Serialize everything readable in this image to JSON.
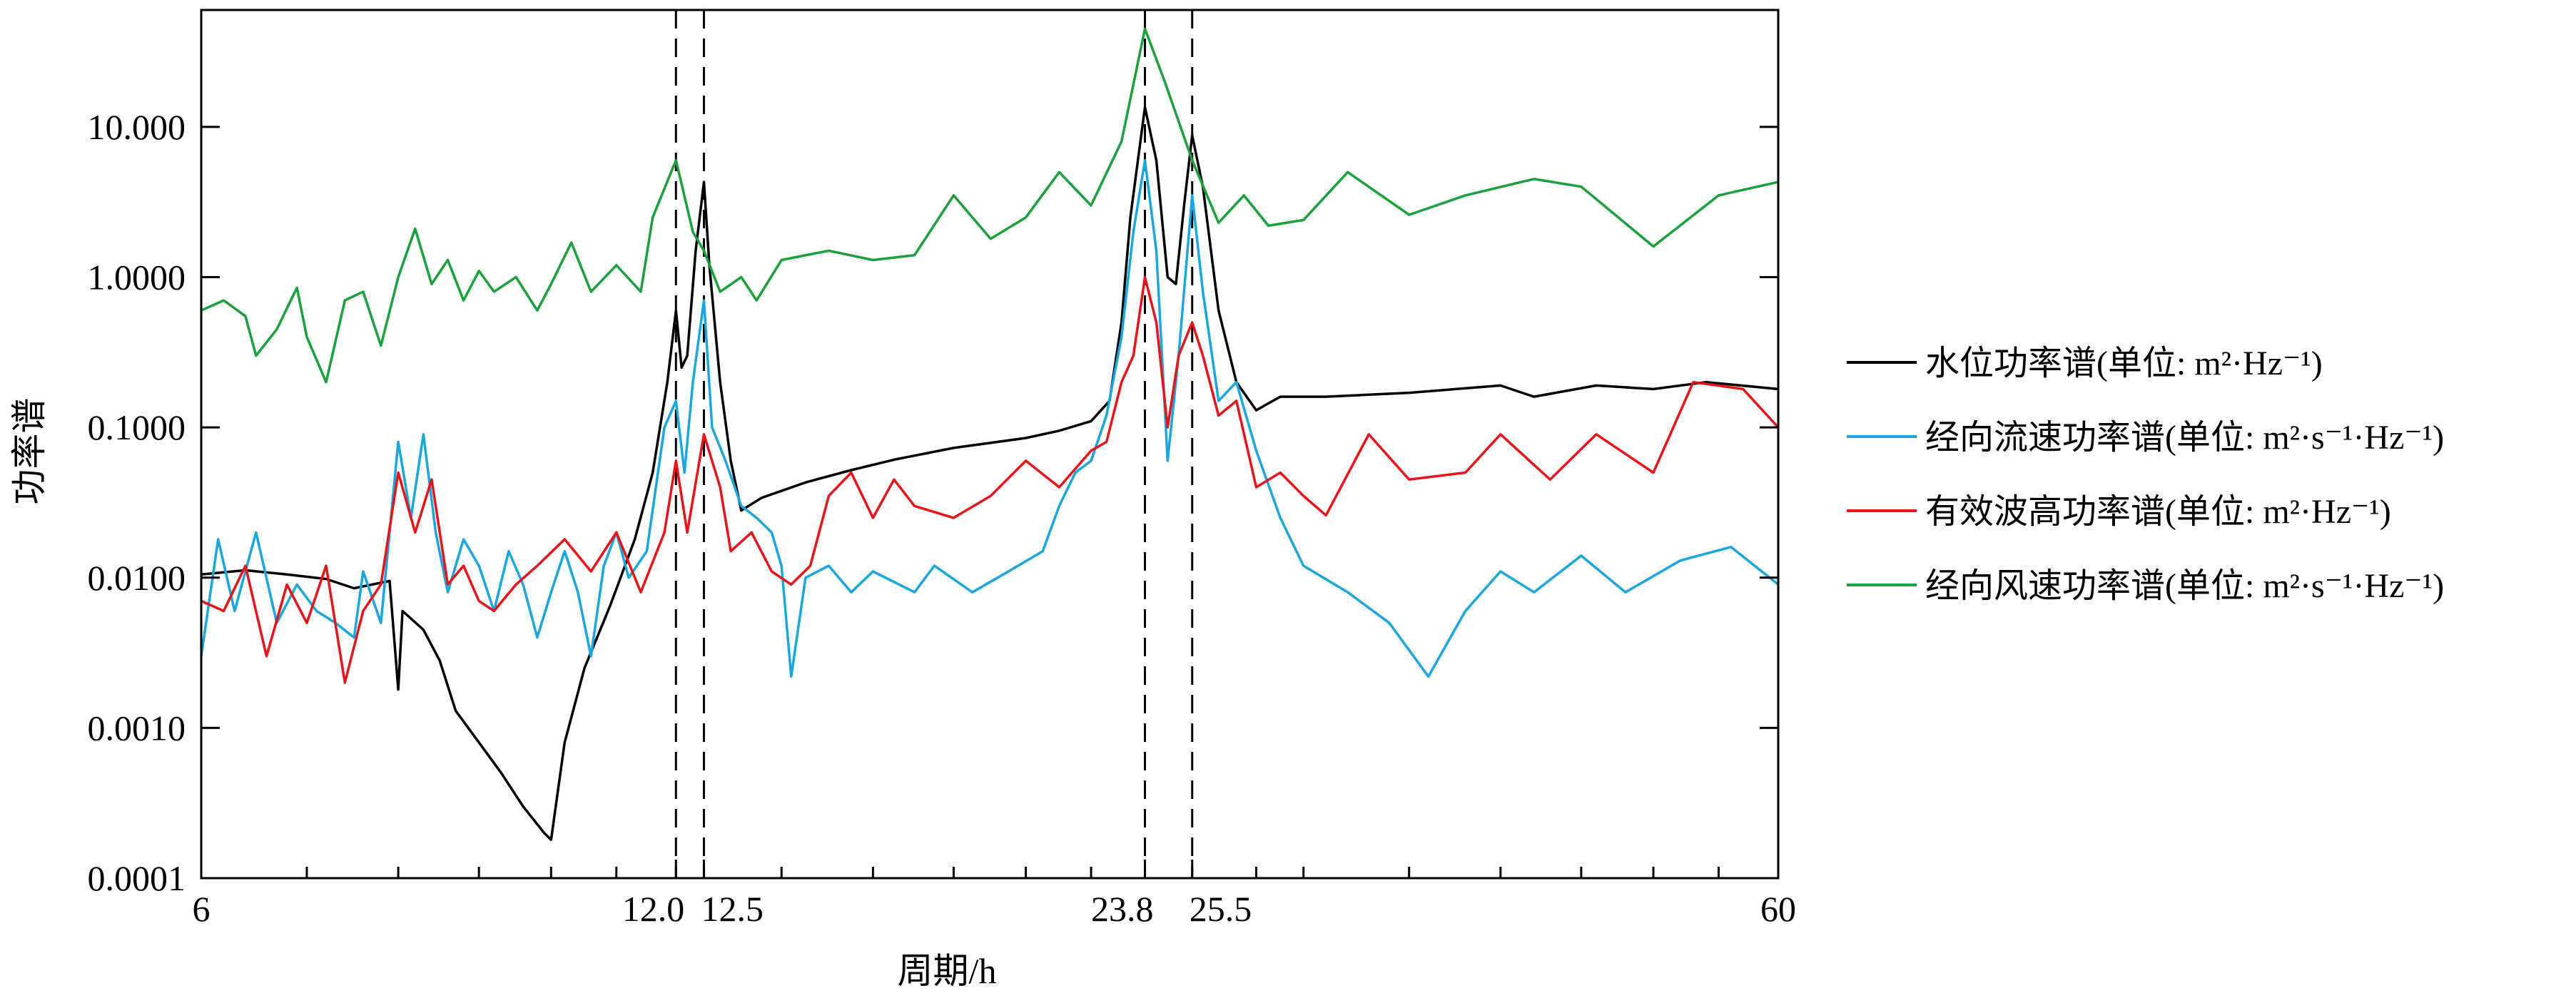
{
  "chart_data": {
    "type": "line",
    "xlabel": "周期/h",
    "ylabel": "功率谱",
    "x_scale": "log",
    "y_scale": "log",
    "xlim": [
      6,
      60
    ],
    "ylim": [
      0.0001,
      60
    ],
    "x_ticks": [
      {
        "value": 6,
        "label": "6"
      },
      {
        "value": 12.0,
        "label": "12.0"
      },
      {
        "value": 12.5,
        "label": "12.5"
      },
      {
        "value": 23.8,
        "label": "23.8"
      },
      {
        "value": 25.5,
        "label": "25.5"
      },
      {
        "value": 60,
        "label": "60"
      }
    ],
    "y_ticks": [
      {
        "value": 0.0001,
        "label": "0.0001"
      },
      {
        "value": 0.001,
        "label": "0.0010"
      },
      {
        "value": 0.01,
        "label": "0.0100"
      },
      {
        "value": 0.1,
        "label": "0.1000"
      },
      {
        "value": 1,
        "label": "1.0000"
      },
      {
        "value": 10,
        "label": "10.000"
      }
    ],
    "reference_lines_x": [
      12.0,
      12.5,
      23.8,
      25.5
    ],
    "legend_position": "right",
    "grid": false,
    "series": [
      {
        "name": "水位功率谱(单位: m²·Hz⁻¹)",
        "color": "#000000",
        "points": [
          [
            6.0,
            0.0105
          ],
          [
            6.4,
            0.0112
          ],
          [
            6.8,
            0.0105
          ],
          [
            7.2,
            0.0098
          ],
          [
            7.5,
            0.0085
          ],
          [
            7.9,
            0.0095
          ],
          [
            8.0,
            0.0018
          ],
          [
            8.05,
            0.006
          ],
          [
            8.3,
            0.0045
          ],
          [
            8.5,
            0.0028
          ],
          [
            8.7,
            0.0013
          ],
          [
            9.0,
            0.0008
          ],
          [
            9.3,
            0.0005
          ],
          [
            9.6,
            0.0003
          ],
          [
            9.9,
            0.0002
          ],
          [
            10.0,
            0.00018
          ],
          [
            10.2,
            0.0008
          ],
          [
            10.5,
            0.0025
          ],
          [
            10.9,
            0.0065
          ],
          [
            11.3,
            0.018
          ],
          [
            11.6,
            0.05
          ],
          [
            11.85,
            0.2
          ],
          [
            12.0,
            0.6
          ],
          [
            12.1,
            0.25
          ],
          [
            12.2,
            0.3
          ],
          [
            12.35,
            1.5
          ],
          [
            12.5,
            4.3
          ],
          [
            12.6,
            1.2
          ],
          [
            12.8,
            0.2
          ],
          [
            13.0,
            0.06
          ],
          [
            13.2,
            0.028
          ],
          [
            13.6,
            0.034
          ],
          [
            14.5,
            0.043
          ],
          [
            15.5,
            0.052
          ],
          [
            16.5,
            0.061
          ],
          [
            18.0,
            0.073
          ],
          [
            20.0,
            0.085
          ],
          [
            21.0,
            0.095
          ],
          [
            22.0,
            0.11
          ],
          [
            22.6,
            0.15
          ],
          [
            23.0,
            0.5
          ],
          [
            23.3,
            2.5
          ],
          [
            23.8,
            13.5
          ],
          [
            24.2,
            6.0
          ],
          [
            24.6,
            1.0
          ],
          [
            24.9,
            0.9
          ],
          [
            25.2,
            3.0
          ],
          [
            25.5,
            8.8
          ],
          [
            25.9,
            4.0
          ],
          [
            26.5,
            0.6
          ],
          [
            27.2,
            0.2
          ],
          [
            28.0,
            0.13
          ],
          [
            29.0,
            0.16
          ],
          [
            31.0,
            0.16
          ],
          [
            35.0,
            0.17
          ],
          [
            40.0,
            0.19
          ],
          [
            42.0,
            0.16
          ],
          [
            46.0,
            0.19
          ],
          [
            50.0,
            0.18
          ],
          [
            54.0,
            0.2
          ],
          [
            60.0,
            0.18
          ]
        ]
      },
      {
        "name": "经向流速功率谱(单位: m²·s⁻¹·Hz⁻¹)",
        "color": "#1aa7dd",
        "points": [
          [
            6.0,
            0.003
          ],
          [
            6.15,
            0.018
          ],
          [
            6.3,
            0.006
          ],
          [
            6.5,
            0.02
          ],
          [
            6.7,
            0.005
          ],
          [
            6.9,
            0.009
          ],
          [
            7.1,
            0.006
          ],
          [
            7.3,
            0.005
          ],
          [
            7.5,
            0.004
          ],
          [
            7.6,
            0.011
          ],
          [
            7.8,
            0.005
          ],
          [
            8.0,
            0.08
          ],
          [
            8.15,
            0.025
          ],
          [
            8.3,
            0.09
          ],
          [
            8.45,
            0.02
          ],
          [
            8.6,
            0.008
          ],
          [
            8.8,
            0.018
          ],
          [
            9.0,
            0.012
          ],
          [
            9.2,
            0.006
          ],
          [
            9.4,
            0.015
          ],
          [
            9.6,
            0.009
          ],
          [
            9.8,
            0.004
          ],
          [
            10.0,
            0.008
          ],
          [
            10.2,
            0.015
          ],
          [
            10.4,
            0.008
          ],
          [
            10.6,
            0.003
          ],
          [
            10.8,
            0.012
          ],
          [
            11.0,
            0.02
          ],
          [
            11.2,
            0.01
          ],
          [
            11.5,
            0.015
          ],
          [
            11.8,
            0.1
          ],
          [
            12.0,
            0.15
          ],
          [
            12.15,
            0.05
          ],
          [
            12.3,
            0.2
          ],
          [
            12.5,
            0.7
          ],
          [
            12.65,
            0.1
          ],
          [
            12.9,
            0.06
          ],
          [
            13.2,
            0.03
          ],
          [
            13.5,
            0.025
          ],
          [
            13.8,
            0.02
          ],
          [
            14.0,
            0.012
          ],
          [
            14.2,
            0.0022
          ],
          [
            14.5,
            0.01
          ],
          [
            15.0,
            0.012
          ],
          [
            15.5,
            0.008
          ],
          [
            16.0,
            0.011
          ],
          [
            17.0,
            0.008
          ],
          [
            17.5,
            0.012
          ],
          [
            18.5,
            0.008
          ],
          [
            19.5,
            0.011
          ],
          [
            20.5,
            0.015
          ],
          [
            21.0,
            0.03
          ],
          [
            21.5,
            0.05
          ],
          [
            22.0,
            0.06
          ],
          [
            22.5,
            0.12
          ],
          [
            23.0,
            0.4
          ],
          [
            23.4,
            2.0
          ],
          [
            23.8,
            6.0
          ],
          [
            24.2,
            1.5
          ],
          [
            24.6,
            0.06
          ],
          [
            25.0,
            0.3
          ],
          [
            25.5,
            3.5
          ],
          [
            25.9,
            0.8
          ],
          [
            26.5,
            0.15
          ],
          [
            27.2,
            0.2
          ],
          [
            28.0,
            0.07
          ],
          [
            29.0,
            0.025
          ],
          [
            30.0,
            0.012
          ],
          [
            32.0,
            0.008
          ],
          [
            34.0,
            0.005
          ],
          [
            36.0,
            0.0022
          ],
          [
            38.0,
            0.006
          ],
          [
            40.0,
            0.011
          ],
          [
            42.0,
            0.008
          ],
          [
            45.0,
            0.014
          ],
          [
            48.0,
            0.008
          ],
          [
            52.0,
            0.013
          ],
          [
            56.0,
            0.016
          ],
          [
            60.0,
            0.009
          ]
        ]
      },
      {
        "name": "有效波高功率谱(单位: m²·Hz⁻¹)",
        "color": "#e8141a",
        "points": [
          [
            6.0,
            0.007
          ],
          [
            6.2,
            0.006
          ],
          [
            6.4,
            0.012
          ],
          [
            6.6,
            0.003
          ],
          [
            6.8,
            0.009
          ],
          [
            7.0,
            0.005
          ],
          [
            7.2,
            0.012
          ],
          [
            7.4,
            0.002
          ],
          [
            7.6,
            0.006
          ],
          [
            7.8,
            0.009
          ],
          [
            8.0,
            0.05
          ],
          [
            8.2,
            0.02
          ],
          [
            8.4,
            0.045
          ],
          [
            8.6,
            0.009
          ],
          [
            8.8,
            0.012
          ],
          [
            9.0,
            0.007
          ],
          [
            9.2,
            0.006
          ],
          [
            9.5,
            0.009
          ],
          [
            9.8,
            0.012
          ],
          [
            10.2,
            0.018
          ],
          [
            10.6,
            0.011
          ],
          [
            11.0,
            0.02
          ],
          [
            11.4,
            0.008
          ],
          [
            11.8,
            0.02
          ],
          [
            12.0,
            0.06
          ],
          [
            12.2,
            0.02
          ],
          [
            12.5,
            0.09
          ],
          [
            12.8,
            0.04
          ],
          [
            13.0,
            0.015
          ],
          [
            13.4,
            0.02
          ],
          [
            13.8,
            0.011
          ],
          [
            14.2,
            0.009
          ],
          [
            14.6,
            0.012
          ],
          [
            15.0,
            0.035
          ],
          [
            15.5,
            0.05
          ],
          [
            16.0,
            0.025
          ],
          [
            16.5,
            0.045
          ],
          [
            17.0,
            0.03
          ],
          [
            18.0,
            0.025
          ],
          [
            19.0,
            0.035
          ],
          [
            20.0,
            0.06
          ],
          [
            21.0,
            0.04
          ],
          [
            22.0,
            0.07
          ],
          [
            22.5,
            0.08
          ],
          [
            23.0,
            0.2
          ],
          [
            23.4,
            0.3
          ],
          [
            23.8,
            1.0
          ],
          [
            24.2,
            0.5
          ],
          [
            24.6,
            0.1
          ],
          [
            25.0,
            0.3
          ],
          [
            25.5,
            0.5
          ],
          [
            25.9,
            0.3
          ],
          [
            26.5,
            0.12
          ],
          [
            27.2,
            0.15
          ],
          [
            28.0,
            0.04
          ],
          [
            29.0,
            0.05
          ],
          [
            30.0,
            0.035
          ],
          [
            31.0,
            0.026
          ],
          [
            33.0,
            0.09
          ],
          [
            35.0,
            0.045
          ],
          [
            38.0,
            0.05
          ],
          [
            40.0,
            0.09
          ],
          [
            43.0,
            0.045
          ],
          [
            46.0,
            0.09
          ],
          [
            50.0,
            0.05
          ],
          [
            53.0,
            0.2
          ],
          [
            57.0,
            0.18
          ],
          [
            60.0,
            0.1
          ]
        ]
      },
      {
        "name": "经向风速功率谱(单位: m²·s⁻¹·Hz⁻¹)",
        "color": "#1aa13c",
        "points": [
          [
            6.0,
            0.6
          ],
          [
            6.2,
            0.7
          ],
          [
            6.4,
            0.55
          ],
          [
            6.5,
            0.3
          ],
          [
            6.7,
            0.45
          ],
          [
            6.9,
            0.85
          ],
          [
            7.0,
            0.4
          ],
          [
            7.2,
            0.2
          ],
          [
            7.4,
            0.7
          ],
          [
            7.6,
            0.8
          ],
          [
            7.8,
            0.35
          ],
          [
            8.0,
            1.0
          ],
          [
            8.2,
            2.1
          ],
          [
            8.4,
            0.9
          ],
          [
            8.6,
            1.3
          ],
          [
            8.8,
            0.7
          ],
          [
            9.0,
            1.1
          ],
          [
            9.2,
            0.8
          ],
          [
            9.5,
            1.0
          ],
          [
            9.8,
            0.6
          ],
          [
            10.0,
            0.9
          ],
          [
            10.3,
            1.7
          ],
          [
            10.6,
            0.8
          ],
          [
            11.0,
            1.2
          ],
          [
            11.4,
            0.8
          ],
          [
            11.6,
            2.5
          ],
          [
            12.0,
            6.0
          ],
          [
            12.3,
            2.0
          ],
          [
            12.5,
            1.5
          ],
          [
            12.8,
            0.8
          ],
          [
            13.2,
            1.0
          ],
          [
            13.5,
            0.7
          ],
          [
            14.0,
            1.3
          ],
          [
            15.0,
            1.5
          ],
          [
            16.0,
            1.3
          ],
          [
            17.0,
            1.4
          ],
          [
            18.0,
            3.5
          ],
          [
            19.0,
            1.8
          ],
          [
            20.0,
            2.5
          ],
          [
            21.0,
            5.0
          ],
          [
            22.0,
            3.0
          ],
          [
            23.0,
            8.0
          ],
          [
            23.8,
            45.0
          ],
          [
            24.5,
            20.0
          ],
          [
            25.5,
            6.0
          ],
          [
            26.5,
            2.3
          ],
          [
            27.5,
            3.5
          ],
          [
            28.5,
            2.2
          ],
          [
            30.0,
            2.4
          ],
          [
            32.0,
            5.0
          ],
          [
            35.0,
            2.6
          ],
          [
            38.0,
            3.5
          ],
          [
            42.0,
            4.5
          ],
          [
            45.0,
            4.0
          ],
          [
            50.0,
            1.6
          ],
          [
            55.0,
            3.5
          ],
          [
            60.0,
            4.3
          ]
        ]
      }
    ]
  }
}
